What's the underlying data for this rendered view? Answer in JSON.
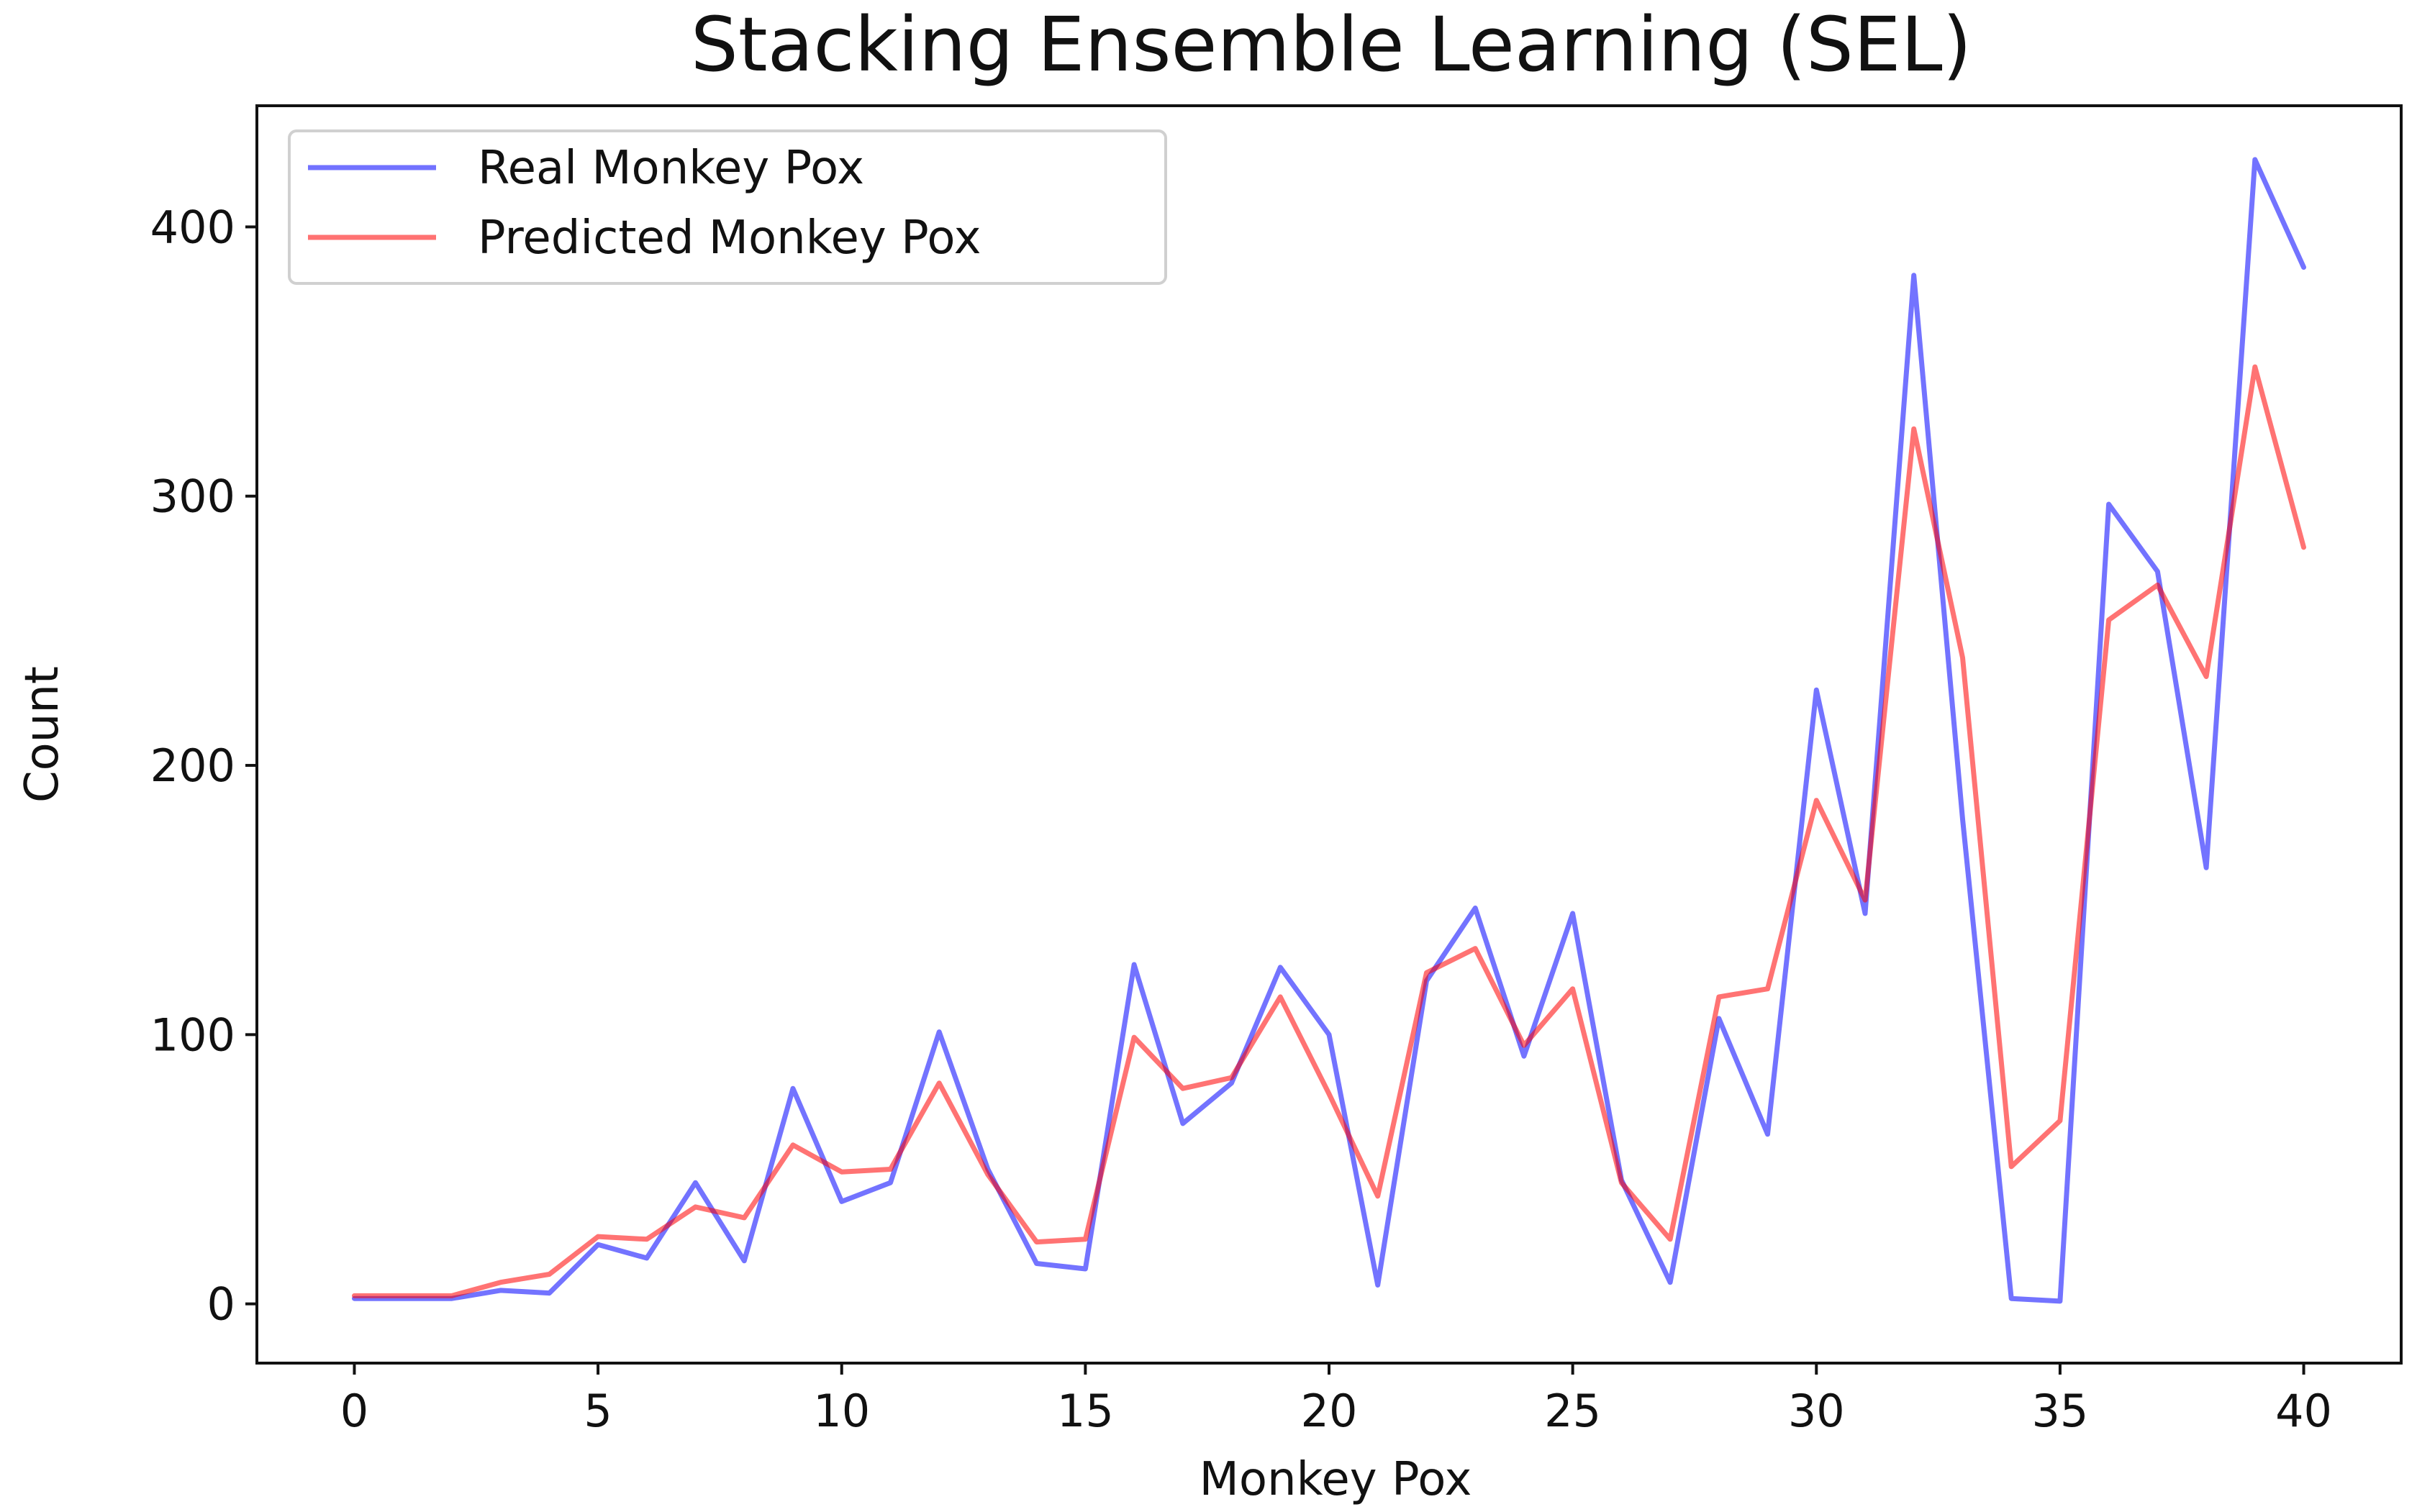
{
  "chart_data": {
    "type": "line",
    "title": "Stacking Ensemble Learning (SEL)",
    "xlabel": "Monkey Pox",
    "ylabel": "Count",
    "xlim": [
      -2,
      42
    ],
    "ylim": [
      -22,
      445
    ],
    "xticks": [
      0,
      5,
      10,
      15,
      20,
      25,
      30,
      35,
      40
    ],
    "yticks": [
      0,
      100,
      200,
      300,
      400
    ],
    "grid": false,
    "legend_position": "top-left",
    "x": [
      0,
      1,
      2,
      3,
      4,
      5,
      6,
      7,
      8,
      9,
      10,
      11,
      12,
      13,
      14,
      15,
      16,
      17,
      18,
      19,
      20,
      21,
      22,
      23,
      24,
      25,
      26,
      27,
      28,
      29,
      30,
      31,
      32,
      33,
      34,
      35,
      36,
      37,
      38,
      39,
      40
    ],
    "series": [
      {
        "name": "Real Monkey Pox",
        "color": "#0000ff",
        "values": [
          2,
          2,
          2,
          5,
          4,
          22,
          17,
          45,
          16,
          80,
          38,
          45,
          101,
          50,
          15,
          13,
          126,
          67,
          82,
          125,
          100,
          7,
          120,
          147,
          92,
          145,
          46,
          8,
          106,
          63,
          228,
          145,
          382,
          180,
          2,
          1,
          297,
          272,
          162,
          425,
          385
        ]
      },
      {
        "name": "Predicted Monkey Pox",
        "color": "#ff0000",
        "values": [
          3,
          3,
          3,
          8,
          11,
          25,
          24,
          36,
          32,
          59,
          49,
          50,
          82,
          48,
          23,
          24,
          99,
          80,
          84,
          114,
          78,
          40,
          123,
          132,
          96,
          117,
          45,
          24,
          114,
          117,
          187,
          150,
          325,
          240,
          51,
          68,
          254,
          267,
          233,
          348,
          281
        ]
      }
    ]
  }
}
